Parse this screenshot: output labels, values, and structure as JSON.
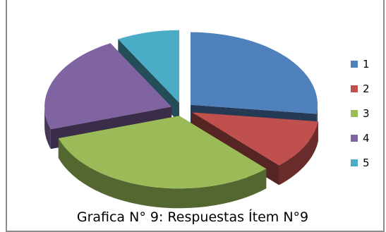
{
  "chart_data": {
    "type": "pie",
    "style": "3d-exploded",
    "title": "Grafica N° 9: Respuestas Ítem N°9",
    "categories": [
      "1",
      "2",
      "3",
      "4",
      "5"
    ],
    "values": [
      27,
      11,
      32,
      22,
      8
    ],
    "unit": "percent",
    "legend": "right",
    "colors": [
      "#4F81BD",
      "#C0504D",
      "#9BBB59",
      "#8064A2",
      "#4BACC6"
    ]
  }
}
